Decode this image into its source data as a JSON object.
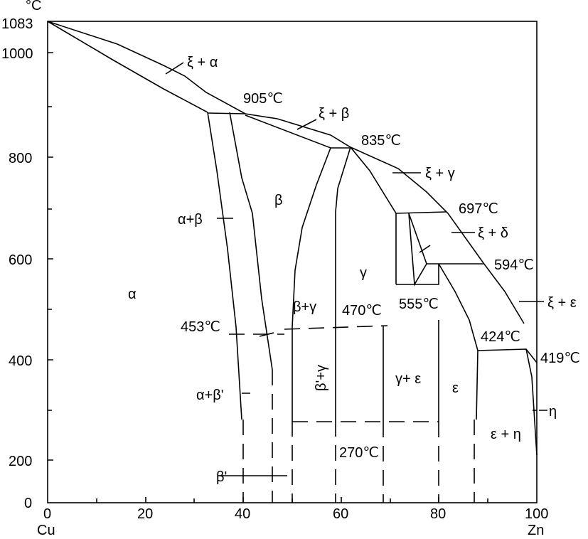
{
  "axes": {
    "y_unit": "°C",
    "y_labels": [
      "1083",
      "1000",
      "800",
      "600",
      "400",
      "200",
      "0"
    ],
    "x_labels": [
      "0",
      "20",
      "40",
      "60",
      "80",
      "100"
    ],
    "x_left": "Cu",
    "x_right": "Zn"
  },
  "labels": [
    "ξ + α",
    "905℃",
    "ξ + β",
    "835℃",
    "ξ + γ",
    "697℃",
    "ξ + δ",
    "594℃",
    "ξ + ε",
    "β",
    "α+β",
    "γ",
    "α",
    "453℃",
    "β+γ",
    "470℃",
    "555℃",
    "424℃",
    "419℃",
    "β'+γ",
    "γ+ ε",
    "ε",
    "α+β'",
    "η",
    "ε + η",
    "270℃",
    "β'"
  ]
}
